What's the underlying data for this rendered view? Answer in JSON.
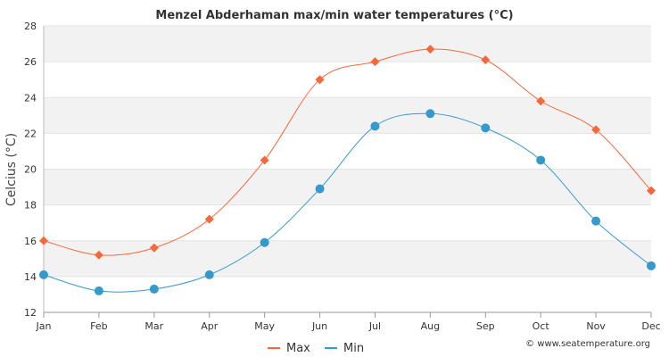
{
  "chart_data": {
    "type": "line",
    "title": "Menzel Abderhaman max/min water temperatures (°C)",
    "xlabel": "",
    "ylabel": "Celcius (°C)",
    "categories": [
      "Jan",
      "Feb",
      "Mar",
      "Apr",
      "May",
      "Jun",
      "Jul",
      "Aug",
      "Sep",
      "Oct",
      "Nov",
      "Dec"
    ],
    "ylim": [
      12,
      28
    ],
    "yticks": [
      12,
      14,
      16,
      18,
      20,
      22,
      24,
      26,
      28
    ],
    "grid": true,
    "legend": "bottom-center",
    "series": [
      {
        "name": "Max",
        "color": "#f4683b",
        "marker": "diamond",
        "values": [
          16.0,
          15.2,
          15.6,
          17.2,
          20.5,
          25.0,
          26.0,
          26.7,
          26.1,
          23.8,
          22.2,
          18.8
        ]
      },
      {
        "name": "Min",
        "color": "#3699cc",
        "marker": "circle",
        "values": [
          14.1,
          13.2,
          13.3,
          14.1,
          15.9,
          18.9,
          22.4,
          23.1,
          22.3,
          20.5,
          17.1,
          14.6
        ]
      }
    ]
  },
  "credit": "© www.seatemperature.org"
}
